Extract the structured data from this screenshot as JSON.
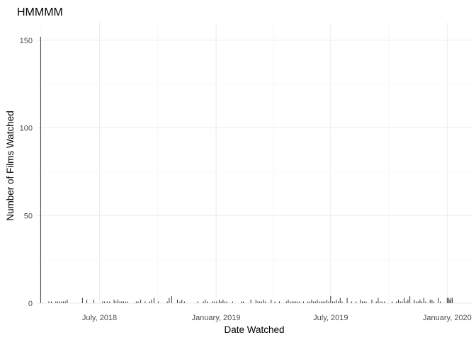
{
  "chart_data": {
    "type": "bar",
    "title": "HMMMM",
    "xlabel": "Date Watched",
    "ylabel": "Number of Films Watched",
    "x_ticks": [
      {
        "date": "2018-07-01",
        "label": "July, 2018"
      },
      {
        "date": "2019-01-01",
        "label": "January, 2019"
      },
      {
        "date": "2019-07-01",
        "label": "July, 2019"
      },
      {
        "date": "2020-01-01",
        "label": "January, 2020"
      }
    ],
    "y_ticks": [
      0,
      50,
      100,
      150
    ],
    "xlim": [
      "2018-03-24",
      "2020-02-11"
    ],
    "ylim": [
      0,
      160
    ],
    "grid": true,
    "legend": "none",
    "bar_color": "#333333",
    "series": [
      {
        "x": [
          "2018-04-12",
          "2018-04-16",
          "2018-04-23",
          "2018-04-26",
          "2018-04-29",
          "2018-05-02",
          "2018-05-05",
          "2018-05-08",
          "2018-05-11",
          "2018-06-04",
          "2018-06-11",
          "2018-06-22",
          "2018-07-06",
          "2018-07-09",
          "2018-07-13",
          "2018-07-17",
          "2018-07-24",
          "2018-07-27",
          "2018-07-30",
          "2018-08-02",
          "2018-08-05",
          "2018-08-08",
          "2018-08-11",
          "2018-08-14",
          "2018-08-28",
          "2018-08-31",
          "2018-09-04",
          "2018-09-11",
          "2018-09-18",
          "2018-09-21",
          "2018-09-25",
          "2018-10-02",
          "2018-10-16",
          "2018-10-19",
          "2018-10-23",
          "2018-11-01",
          "2018-11-05",
          "2018-11-08",
          "2018-11-12",
          "2018-12-03",
          "2018-12-12",
          "2018-12-15",
          "2018-12-18",
          "2018-12-26",
          "2018-12-29",
          "2019-01-02",
          "2019-01-06",
          "2019-01-09",
          "2019-01-12",
          "2019-01-15",
          "2019-01-18",
          "2019-01-27",
          "2019-02-10",
          "2019-02-13",
          "2019-02-25",
          "2019-03-05",
          "2019-03-08",
          "2019-03-11",
          "2019-03-14",
          "2019-03-17",
          "2019-03-20",
          "2019-03-29",
          "2019-04-04",
          "2019-04-11",
          "2019-04-22",
          "2019-04-25",
          "2019-04-28",
          "2019-05-01",
          "2019-05-04",
          "2019-05-07",
          "2019-05-10",
          "2019-05-13",
          "2019-05-19",
          "2019-05-26",
          "2019-05-29",
          "2019-06-01",
          "2019-06-04",
          "2019-06-07",
          "2019-06-10",
          "2019-06-13",
          "2019-06-16",
          "2019-06-19",
          "2019-06-22",
          "2019-06-25",
          "2019-06-28",
          "2019-07-01",
          "2019-07-04",
          "2019-07-07",
          "2019-07-10",
          "2019-07-13",
          "2019-07-16",
          "2019-07-19",
          "2019-07-27",
          "2019-08-03",
          "2019-08-10",
          "2019-08-17",
          "2019-08-20",
          "2019-08-23",
          "2019-08-26",
          "2019-09-04",
          "2019-09-11",
          "2019-09-14",
          "2019-09-17",
          "2019-09-20",
          "2019-09-24",
          "2019-10-06",
          "2019-10-13",
          "2019-10-16",
          "2019-10-19",
          "2019-10-22",
          "2019-10-25",
          "2019-10-28",
          "2019-10-31",
          "2019-11-03",
          "2019-11-10",
          "2019-11-13",
          "2019-11-16",
          "2019-11-19",
          "2019-11-22",
          "2019-11-25",
          "2019-11-28",
          "2019-12-05",
          "2019-12-08",
          "2019-12-11",
          "2019-12-18",
          "2019-12-21",
          "2020-01-01",
          "2020-01-03",
          "2020-01-05",
          "2020-01-07",
          "2020-01-09"
        ],
        "values": [
          1,
          1,
          1,
          1,
          1,
          1,
          1,
          1,
          2,
          3,
          2,
          2,
          1,
          1,
          1,
          1,
          2,
          1,
          2,
          1,
          1,
          1,
          1,
          1,
          1,
          1,
          2,
          1,
          1,
          2,
          3,
          1,
          1,
          3,
          4,
          2,
          1,
          2,
          1,
          1,
          1,
          2,
          1,
          1,
          1,
          1,
          2,
          1,
          2,
          1,
          1,
          1,
          1,
          1,
          2,
          2,
          1,
          1,
          1,
          2,
          1,
          2,
          1,
          1,
          1,
          2,
          1,
          1,
          1,
          1,
          1,
          1,
          1,
          1,
          1,
          2,
          1,
          1,
          2,
          1,
          1,
          1,
          1,
          2,
          1,
          4,
          1,
          1,
          2,
          1,
          3,
          1,
          3,
          1,
          1,
          2,
          1,
          1,
          1,
          2,
          1,
          3,
          1,
          1,
          1,
          1,
          1,
          2,
          1,
          1,
          3,
          1,
          2,
          4,
          2,
          1,
          1,
          2,
          1,
          3,
          1,
          2,
          2,
          1,
          3,
          1,
          3,
          3,
          2,
          3,
          3
        ]
      }
    ],
    "annotations": [
      {
        "x": "2018-03-30",
        "value": 152
      }
    ]
  }
}
